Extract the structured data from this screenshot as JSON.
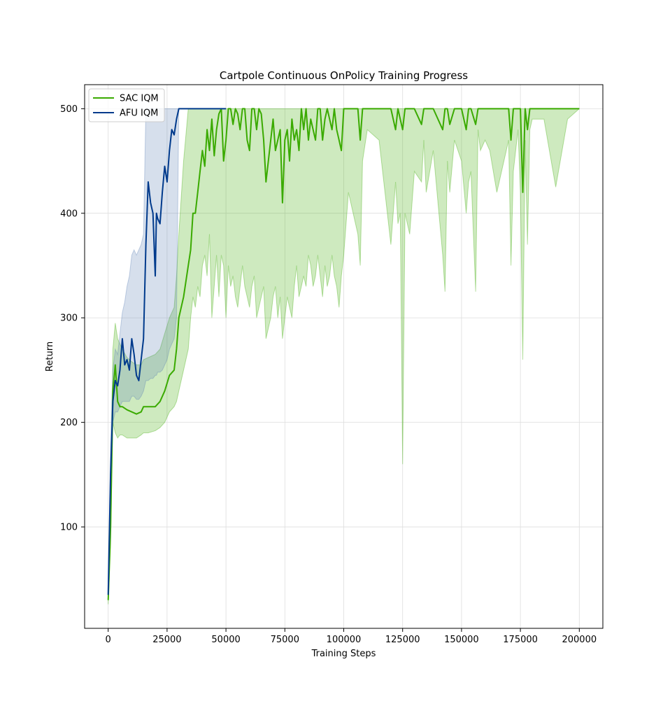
{
  "chart_data": {
    "type": "line",
    "title": "Cartpole Continuous OnPolicy Training Progress",
    "xlabel": "Training Steps",
    "ylabel": "Return",
    "xlim": [
      -10000,
      210000
    ],
    "ylim": [
      3,
      523
    ],
    "xticks": [
      0,
      25000,
      50000,
      75000,
      100000,
      125000,
      150000,
      175000,
      200000
    ],
    "yticks": [
      100,
      200,
      300,
      400,
      500
    ],
    "grid": true,
    "legend_position": "top-left",
    "series": [
      {
        "name": "SAC IQM",
        "color": "#3aaa00",
        "band_color": "#3aaa00",
        "x": [
          0,
          1000,
          2000,
          3000,
          4000,
          5000,
          6000,
          8000,
          10000,
          12000,
          14000,
          15000,
          17000,
          20000,
          22000,
          24000,
          26000,
          28000,
          29000,
          30000,
          32000,
          34000,
          35000,
          36000,
          37000,
          38000,
          39000,
          40000,
          41000,
          42000,
          43000,
          44000,
          45000,
          46000,
          47000,
          48000,
          49000,
          50000,
          51000,
          52000,
          53000,
          54000,
          55000,
          56000,
          57000,
          58000,
          59000,
          60000,
          61000,
          62000,
          63000,
          64000,
          65000,
          66000,
          67000,
          68000,
          69000,
          70000,
          71000,
          72000,
          73000,
          74000,
          75000,
          76000,
          77000,
          78000,
          79000,
          80000,
          81000,
          82000,
          83000,
          84000,
          85000,
          86000,
          87000,
          88000,
          89000,
          90000,
          91000,
          92000,
          93000,
          94000,
          95000,
          96000,
          97000,
          98000,
          99000,
          100000,
          102000,
          106000,
          107000,
          108000,
          110000,
          115000,
          120000,
          122000,
          123000,
          124000,
          125000,
          126000,
          128000,
          130000,
          133000,
          134000,
          135000,
          138000,
          142000,
          143000,
          144000,
          145000,
          147000,
          150000,
          152000,
          153000,
          154000,
          156000,
          157000,
          158000,
          160000,
          162000,
          165000,
          170000,
          171000,
          172000,
          174000,
          175000,
          176000,
          177000,
          178000,
          179000,
          180000,
          185000,
          190000,
          195000,
          200000
        ],
        "values": [
          30,
          100,
          230,
          255,
          220,
          215,
          215,
          212,
          210,
          208,
          210,
          215,
          215,
          215,
          220,
          230,
          245,
          250,
          270,
          300,
          320,
          350,
          365,
          400,
          400,
          420,
          440,
          460,
          445,
          480,
          460,
          490,
          455,
          480,
          495,
          500,
          450,
          470,
          500,
          500,
          485,
          500,
          495,
          480,
          500,
          500,
          470,
          460,
          500,
          500,
          480,
          500,
          495,
          470,
          430,
          450,
          470,
          490,
          460,
          470,
          480,
          410,
          470,
          480,
          450,
          490,
          470,
          480,
          460,
          500,
          480,
          500,
          470,
          490,
          480,
          470,
          500,
          500,
          470,
          490,
          500,
          490,
          480,
          500,
          480,
          470,
          460,
          500,
          500,
          500,
          470,
          500,
          500,
          500,
          500,
          480,
          500,
          490,
          480,
          500,
          500,
          500,
          485,
          500,
          500,
          500,
          480,
          500,
          500,
          485,
          500,
          500,
          480,
          500,
          500,
          485,
          500,
          500,
          500,
          500,
          500,
          500,
          470,
          500,
          500,
          500,
          420,
          500,
          480,
          500,
          500,
          500,
          500,
          500,
          500
        ],
        "lower": [
          26,
          80,
          200,
          190,
          185,
          188,
          188,
          185,
          185,
          185,
          188,
          190,
          190,
          192,
          195,
          200,
          210,
          215,
          220,
          230,
          250,
          270,
          300,
          320,
          310,
          330,
          320,
          350,
          360,
          340,
          380,
          300,
          330,
          360,
          320,
          360,
          350,
          300,
          350,
          330,
          340,
          320,
          310,
          330,
          350,
          330,
          320,
          310,
          330,
          340,
          300,
          310,
          320,
          330,
          280,
          290,
          300,
          320,
          330,
          300,
          320,
          280,
          300,
          320,
          310,
          300,
          330,
          350,
          320,
          330,
          340,
          330,
          360,
          350,
          330,
          340,
          360,
          340,
          320,
          350,
          330,
          340,
          360,
          340,
          330,
          310,
          340,
          360,
          420,
          380,
          350,
          450,
          480,
          470,
          370,
          430,
          390,
          400,
          160,
          400,
          380,
          440,
          430,
          470,
          420,
          460,
          360,
          325,
          450,
          420,
          470,
          450,
          400,
          430,
          440,
          325,
          480,
          460,
          470,
          460,
          420,
          470,
          350,
          440,
          480,
          420,
          260,
          470,
          370,
          480,
          490,
          490,
          425,
          490,
          500
        ],
        "upper": [
          35,
          130,
          270,
          295,
          280,
          275,
          270,
          262,
          258,
          255,
          255,
          260,
          262,
          265,
          270,
          285,
          300,
          310,
          340,
          380,
          450,
          500,
          500,
          500,
          500,
          500,
          500,
          500,
          500,
          500,
          500,
          500,
          500,
          500,
          500,
          500,
          500,
          500,
          500,
          500,
          500,
          500,
          500,
          500,
          500,
          500,
          500,
          500,
          500,
          500,
          500,
          500,
          500,
          500,
          500,
          500,
          500,
          500,
          500,
          500,
          500,
          500,
          500,
          500,
          500,
          500,
          500,
          500,
          500,
          500,
          500,
          500,
          500,
          500,
          500,
          500,
          500,
          500,
          500,
          500,
          500,
          500,
          500,
          500,
          500,
          500,
          500,
          500,
          500,
          500,
          500,
          500,
          500,
          500,
          500,
          500,
          500,
          500,
          500,
          500,
          500,
          500,
          500,
          500,
          500,
          500,
          500,
          500,
          500,
          500,
          500,
          500,
          500,
          500,
          500,
          500,
          500,
          500,
          500,
          500,
          500,
          500,
          500,
          500,
          500,
          500,
          500,
          500,
          500,
          500,
          500,
          500,
          500,
          500,
          500
        ]
      },
      {
        "name": "AFU IQM",
        "color": "#003a8c",
        "band_color": "#5a7fb5",
        "x": [
          0,
          1000,
          2000,
          3000,
          4000,
          5000,
          6000,
          7000,
          8000,
          9000,
          10000,
          11000,
          12000,
          13000,
          14000,
          15000,
          16000,
          17000,
          18000,
          19000,
          20000,
          20500,
          21000,
          22000,
          23000,
          24000,
          25000,
          26000,
          27000,
          28000,
          29000,
          30000,
          35000,
          40000,
          45000,
          50000
        ],
        "values": [
          35,
          150,
          220,
          240,
          235,
          250,
          280,
          255,
          260,
          250,
          280,
          265,
          245,
          240,
          260,
          280,
          370,
          430,
          410,
          400,
          340,
          400,
          395,
          390,
          420,
          445,
          430,
          460,
          480,
          475,
          490,
          500,
          500,
          500,
          500,
          500
        ],
        "lower": [
          30,
          120,
          200,
          210,
          210,
          215,
          220,
          220,
          220,
          220,
          225,
          225,
          222,
          222,
          225,
          230,
          240,
          240,
          242,
          242,
          245,
          245,
          248,
          248,
          250,
          255,
          260,
          270,
          275,
          280,
          300,
          500,
          500,
          500,
          500,
          500
        ],
        "upper": [
          40,
          180,
          250,
          270,
          265,
          285,
          305,
          315,
          330,
          340,
          360,
          365,
          360,
          365,
          370,
          380,
          500,
          500,
          500,
          500,
          500,
          500,
          500,
          500,
          500,
          500,
          500,
          500,
          500,
          500,
          500,
          500,
          500,
          500,
          500,
          500
        ]
      }
    ]
  }
}
